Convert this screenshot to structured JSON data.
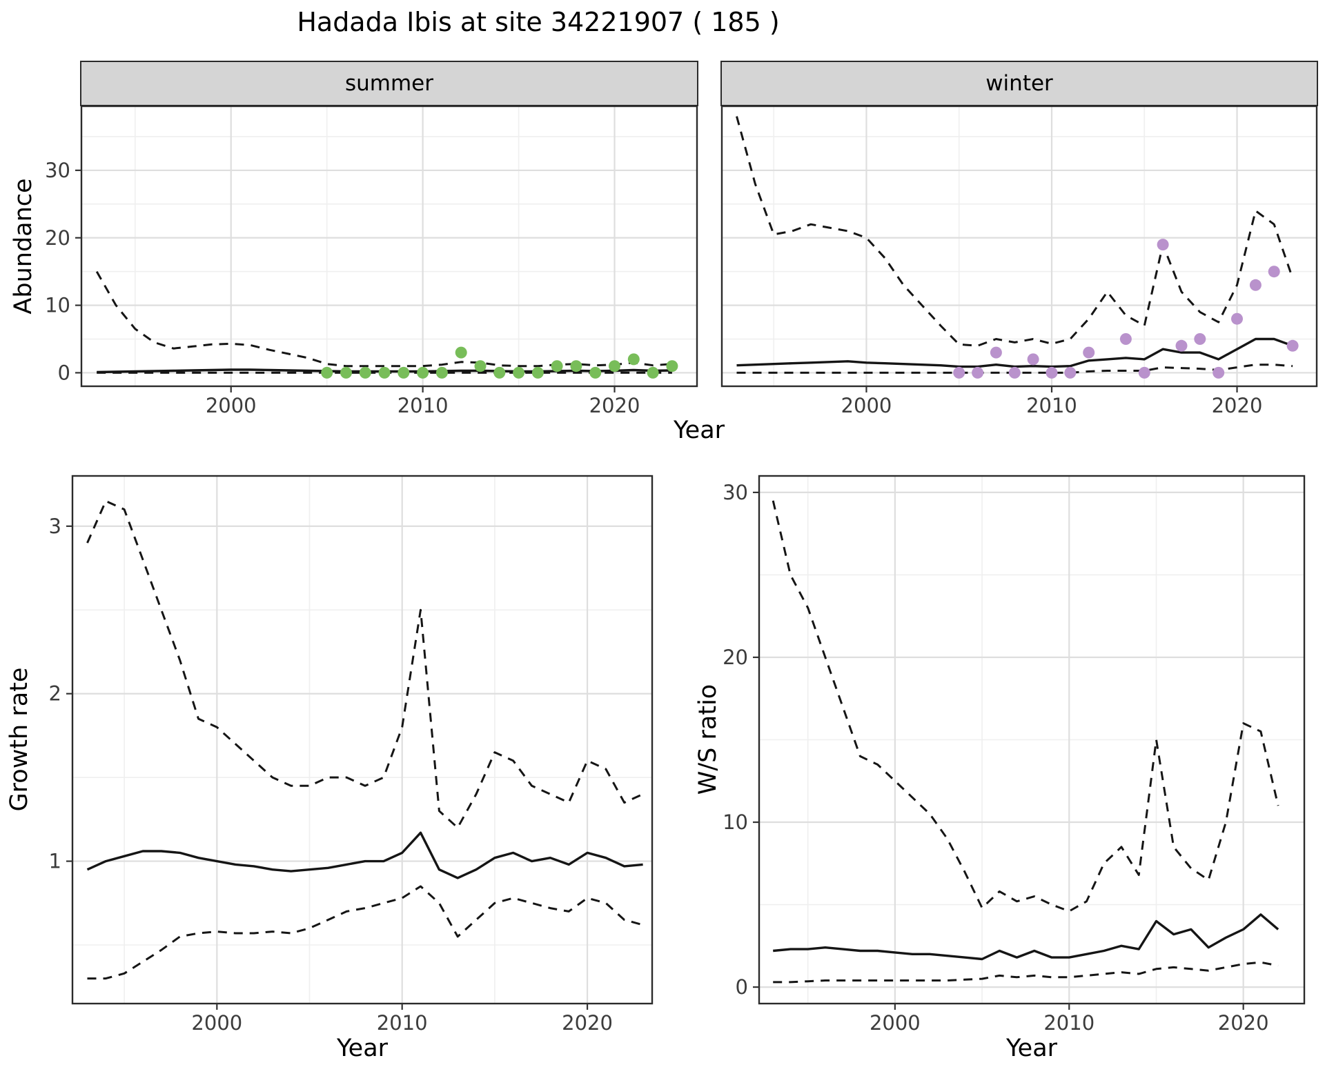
{
  "title": "Hadada Ibis at site 34221907 ( 185 )",
  "labels": {
    "facet_summer": "summer",
    "facet_winter": "winter",
    "abundance_y": "Abundance",
    "growth_y": "Growth rate",
    "ws_y": "W/S ratio",
    "year_top": "Year",
    "year_growth": "Year",
    "year_ws": "Year"
  },
  "colors": {
    "line": "#151515",
    "summer_points": "#78bd59",
    "winter_points": "#b992cc",
    "grid_major": "#dedede",
    "grid_minor": "#efefef",
    "panel_border": "#2b2b2b",
    "tick_text": "#3c3c3c"
  },
  "chart_data": {
    "type": "line",
    "title": "Hadada Ibis at site 34221907 ( 185 )",
    "facets": [
      "summer",
      "winter"
    ],
    "legend": "none",
    "grid": "on",
    "panels": [
      {
        "id": "abundance_summer",
        "facet": "summer",
        "ylabel": "Abundance",
        "xlabel": "Year",
        "xlim": [
          1992.2,
          2024.3
        ],
        "ylim": [
          -2,
          39.5
        ],
        "xticks": [
          2000,
          2010,
          2020
        ],
        "xticks_minor": [
          1995,
          2005,
          2015
        ],
        "yticks": [
          0,
          10,
          20,
          30
        ],
        "yticks_minor": [
          5,
          15,
          25,
          35
        ],
        "show_y_tick_labels": true,
        "x": [
          1993,
          1994,
          1995,
          1996,
          1997,
          1998,
          1999,
          2000,
          2001,
          2002,
          2003,
          2004,
          2005,
          2006,
          2007,
          2008,
          2009,
          2010,
          2011,
          2012,
          2013,
          2014,
          2015,
          2016,
          2017,
          2018,
          2019,
          2020,
          2021,
          2022,
          2023
        ],
        "lines": [
          {
            "name": "upper_95ci",
            "style": "dashed",
            "y": [
              15,
              10,
              6.5,
              4.5,
              3.6,
              3.9,
              4.2,
              4.3,
              4.1,
              3.4,
              2.8,
              2.2,
              1.3,
              1.0,
              1.0,
              1.0,
              1.0,
              1.0,
              1.2,
              1.6,
              1.5,
              1.1,
              1.0,
              1.0,
              1.2,
              1.3,
              1.1,
              1.2,
              1.5,
              1.1,
              1.3
            ]
          },
          {
            "name": "median",
            "style": "solid",
            "y": [
              0.1,
              0.15,
              0.2,
              0.25,
              0.3,
              0.35,
              0.4,
              0.45,
              0.45,
              0.4,
              0.35,
              0.3,
              0.25,
              0.2,
              0.2,
              0.2,
              0.2,
              0.2,
              0.25,
              0.3,
              0.3,
              0.25,
              0.2,
              0.2,
              0.25,
              0.3,
              0.25,
              0.3,
              0.4,
              0.3,
              0.35
            ]
          },
          {
            "name": "lower_95ci",
            "style": "dashed",
            "y": [
              0,
              0,
              0,
              0,
              0,
              0,
              0,
              0,
              0,
              0,
              0,
              0,
              0,
              0,
              0,
              0,
              0,
              0,
              0,
              0,
              0,
              0,
              0,
              0,
              0,
              0,
              0,
              0,
              0,
              0,
              0
            ]
          }
        ],
        "points": {
          "name": "observed_counts",
          "color_key": "summer_points",
          "x": [
            2005,
            2006,
            2007,
            2008,
            2009,
            2010,
            2011,
            2012,
            2013,
            2014,
            2015,
            2016,
            2017,
            2018,
            2019,
            2020,
            2021,
            2022,
            2023
          ],
          "y": [
            0,
            0,
            0,
            0,
            0,
            0,
            0,
            3,
            1,
            0,
            0,
            0,
            1,
            1,
            0,
            1,
            2,
            0,
            1
          ]
        }
      },
      {
        "id": "abundance_winter",
        "facet": "winter",
        "ylabel": "Abundance",
        "xlabel": "Year",
        "xlim": [
          1992.2,
          2024.3
        ],
        "ylim": [
          -2,
          39.5
        ],
        "xticks": [
          2000,
          2010,
          2020
        ],
        "xticks_minor": [
          1995,
          2005,
          2015
        ],
        "yticks": [
          0,
          10,
          20,
          30
        ],
        "yticks_minor": [
          5,
          15,
          25,
          35
        ],
        "show_y_tick_labels": false,
        "x": [
          1993,
          1994,
          1995,
          1996,
          1997,
          1998,
          1999,
          2000,
          2001,
          2002,
          2003,
          2004,
          2005,
          2006,
          2007,
          2008,
          2009,
          2010,
          2011,
          2012,
          2013,
          2014,
          2015,
          2016,
          2017,
          2018,
          2019,
          2020,
          2021,
          2022,
          2023
        ],
        "lines": [
          {
            "name": "upper_95ci",
            "style": "dashed",
            "y": [
              38,
              28,
              20.5,
              21,
              22,
              21.5,
              21,
              20,
              17,
              13,
              10,
              7,
              4.2,
              4,
              5,
              4.5,
              5,
              4.3,
              5,
              8,
              12,
              8.5,
              7,
              19,
              12,
              9,
              7.5,
              13,
              24,
              22,
              14
            ]
          },
          {
            "name": "median",
            "style": "solid",
            "y": [
              1.1,
              1.2,
              1.3,
              1.4,
              1.5,
              1.6,
              1.7,
              1.5,
              1.4,
              1.3,
              1.2,
              1.1,
              0.9,
              0.9,
              1.2,
              0.9,
              1.0,
              0.9,
              1.0,
              1.8,
              2.0,
              2.2,
              2.0,
              3.5,
              3.0,
              3.0,
              2.0,
              3.5,
              5.0,
              5.0,
              4.0
            ]
          },
          {
            "name": "lower_95ci",
            "style": "dashed",
            "y": [
              0,
              0,
              0,
              0,
              0,
              0,
              0,
              0,
              0,
              0,
              0,
              0,
              0,
              0,
              0,
              0,
              0,
              0,
              0,
              0.2,
              0.3,
              0.3,
              0.3,
              0.8,
              0.7,
              0.6,
              0.4,
              0.8,
              1.2,
              1.2,
              1.0
            ]
          }
        ],
        "points": {
          "name": "observed_counts",
          "color_key": "winter_points",
          "x": [
            2005,
            2006,
            2007,
            2008,
            2009,
            2010,
            2011,
            2012,
            2014,
            2015,
            2016,
            2017,
            2018,
            2019,
            2020,
            2021,
            2022,
            2023
          ],
          "y": [
            0,
            0,
            3,
            0,
            2,
            0,
            0,
            3,
            5,
            0,
            19,
            4,
            5,
            0,
            8,
            13,
            15,
            4
          ]
        }
      },
      {
        "id": "growth_rate",
        "facet": null,
        "ylabel": "Growth rate",
        "xlabel": "Year",
        "xlim": [
          1992.2,
          2023.5
        ],
        "ylim": [
          0.15,
          3.3
        ],
        "xticks": [
          2000,
          2010,
          2020
        ],
        "xticks_minor": [
          1995,
          2005,
          2015
        ],
        "yticks": [
          1,
          2,
          3
        ],
        "yticks_minor": [
          0.5,
          1.5,
          2.5
        ],
        "show_y_tick_labels": true,
        "x": [
          1993,
          1994,
          1995,
          1996,
          1997,
          1998,
          1999,
          2000,
          2001,
          2002,
          2003,
          2004,
          2005,
          2006,
          2007,
          2008,
          2009,
          2010,
          2011,
          2012,
          2013,
          2014,
          2015,
          2016,
          2017,
          2018,
          2019,
          2020,
          2021,
          2022,
          2023
        ],
        "lines": [
          {
            "name": "upper_95ci",
            "style": "dashed",
            "y": [
              2.9,
              3.15,
              3.1,
              2.8,
              2.5,
              2.2,
              1.85,
              1.8,
              1.7,
              1.6,
              1.5,
              1.45,
              1.45,
              1.5,
              1.5,
              1.45,
              1.5,
              1.8,
              2.5,
              1.3,
              1.2,
              1.4,
              1.65,
              1.6,
              1.45,
              1.4,
              1.35,
              1.6,
              1.55,
              1.35,
              1.4
            ]
          },
          {
            "name": "median",
            "style": "solid",
            "y": [
              0.95,
              1.0,
              1.03,
              1.06,
              1.06,
              1.05,
              1.02,
              1.0,
              0.98,
              0.97,
              0.95,
              0.94,
              0.95,
              0.96,
              0.98,
              1.0,
              1.0,
              1.05,
              1.17,
              0.95,
              0.9,
              0.95,
              1.02,
              1.05,
              1.0,
              1.02,
              0.98,
              1.05,
              1.02,
              0.97,
              0.98
            ]
          },
          {
            "name": "lower_95ci",
            "style": "dashed",
            "y": [
              0.3,
              0.3,
              0.33,
              0.4,
              0.47,
              0.55,
              0.57,
              0.58,
              0.57,
              0.57,
              0.58,
              0.57,
              0.6,
              0.65,
              0.7,
              0.72,
              0.75,
              0.78,
              0.85,
              0.75,
              0.55,
              0.65,
              0.75,
              0.78,
              0.75,
              0.72,
              0.7,
              0.78,
              0.75,
              0.65,
              0.62
            ]
          }
        ],
        "points": null
      },
      {
        "id": "ws_ratio",
        "facet": null,
        "ylabel": "W/S ratio",
        "xlabel": "Year",
        "xlim": [
          1992.2,
          2023.5
        ],
        "ylim": [
          -1,
          31
        ],
        "xticks": [
          2000,
          2010,
          2020
        ],
        "xticks_minor": [
          1995,
          2005,
          2015
        ],
        "yticks": [
          0,
          10,
          20,
          30
        ],
        "yticks_minor": [
          5,
          15,
          25
        ],
        "show_y_tick_labels": true,
        "x": [
          1993,
          1994,
          1995,
          1996,
          1997,
          1998,
          1999,
          2000,
          2001,
          2002,
          2003,
          2004,
          2005,
          2006,
          2007,
          2008,
          2009,
          2010,
          2011,
          2012,
          2013,
          2014,
          2015,
          2016,
          2017,
          2018,
          2019,
          2020,
          2021,
          2022
        ],
        "lines": [
          {
            "name": "upper_95ci",
            "style": "dashed",
            "y": [
              29.5,
              25,
              23,
              20,
              17,
              14,
              13.5,
              12.5,
              11.5,
              10.5,
              9,
              7,
              4.8,
              5.8,
              5.2,
              5.5,
              5,
              4.6,
              5.2,
              7.5,
              8.5,
              6.8,
              15,
              8.5,
              7.2,
              6.5,
              10,
              16,
              15.5,
              11
            ]
          },
          {
            "name": "median",
            "style": "solid",
            "y": [
              2.2,
              2.3,
              2.3,
              2.4,
              2.3,
              2.2,
              2.2,
              2.1,
              2.0,
              2.0,
              1.9,
              1.8,
              1.7,
              2.2,
              1.8,
              2.2,
              1.8,
              1.8,
              2.0,
              2.2,
              2.5,
              2.3,
              4.0,
              3.2,
              3.5,
              2.4,
              3.0,
              3.5,
              4.4,
              3.5
            ]
          },
          {
            "name": "lower_95ci",
            "style": "dashed",
            "y": [
              0.3,
              0.3,
              0.35,
              0.4,
              0.4,
              0.4,
              0.4,
              0.4,
              0.4,
              0.4,
              0.4,
              0.45,
              0.5,
              0.7,
              0.6,
              0.7,
              0.6,
              0.6,
              0.7,
              0.8,
              0.9,
              0.8,
              1.1,
              1.2,
              1.1,
              1.0,
              1.2,
              1.4,
              1.5,
              1.3
            ]
          }
        ],
        "points": null
      }
    ]
  }
}
